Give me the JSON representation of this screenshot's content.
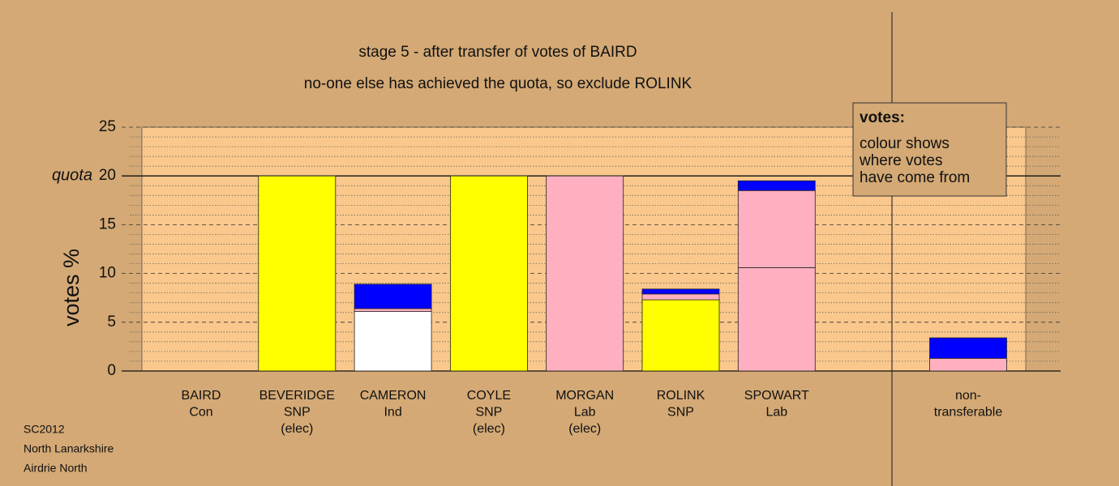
{
  "chart_data": {
    "type": "stacked_bar",
    "title": "stage 5 - after transfer of votes of BAIRD",
    "subtitle": "no-one else has achieved the quota, so exclude ROLINK",
    "ylabel": "votes %",
    "quota": 20,
    "quota_label": "quota",
    "categories": [
      [
        "BAIRD",
        "Con"
      ],
      [
        "BEVERIDGE",
        "SNP",
        "(elec)"
      ],
      [
        "CAMERON",
        "Ind"
      ],
      [
        "COYLE",
        "SNP",
        "(elec)"
      ],
      [
        "MORGAN",
        "Lab",
        "(elec)"
      ],
      [
        "ROLINK",
        "SNP"
      ],
      [
        "SPOWART",
        "Lab"
      ],
      [
        "non-",
        "transferable"
      ]
    ],
    "series": [
      {
        "color": "#ffffff",
        "values": [
          null,
          null,
          6.1,
          null,
          null,
          null,
          null,
          null
        ]
      },
      {
        "color": "#ffff00",
        "values": [
          null,
          20,
          null,
          20,
          null,
          7.3,
          null,
          null
        ]
      },
      {
        "color": "#ffb0c0",
        "values": [
          null,
          null,
          0.3,
          null,
          20,
          0.6,
          10.6,
          1.3
        ]
      },
      {
        "color": "#ffb0c0",
        "values": [
          null,
          null,
          null,
          null,
          null,
          null,
          7.9,
          null
        ]
      },
      {
        "color": "#0000ff",
        "values": [
          null,
          null,
          2.5,
          null,
          null,
          0.5,
          1.0,
          2.1
        ]
      }
    ],
    "ylim": [
      0,
      25
    ],
    "yticks": [
      0,
      5,
      10,
      15,
      20,
      25
    ],
    "grid": true,
    "legend": {
      "title": "votes:",
      "lines": [
        "colour shows",
        "where votes",
        "have come from"
      ]
    },
    "footer": [
      "SC2012",
      "North Lanarkshire",
      "Airdrie North"
    ]
  }
}
